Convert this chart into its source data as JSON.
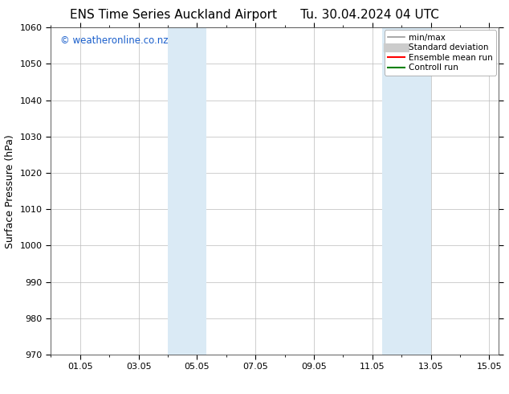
{
  "title_left": "ENS Time Series Auckland Airport",
  "title_right": "Tu. 30.04.2024 04 UTC",
  "ylabel": "Surface Pressure (hPa)",
  "ylim": [
    970,
    1060
  ],
  "yticks": [
    970,
    980,
    990,
    1000,
    1010,
    1020,
    1030,
    1040,
    1050,
    1060
  ],
  "xlim_start": 0.0,
  "xlim_end": 15.33,
  "xtick_positions": [
    1,
    3,
    5,
    7,
    9,
    11,
    13,
    15
  ],
  "xtick_labels": [
    "01.05",
    "03.05",
    "05.05",
    "07.05",
    "09.05",
    "11.05",
    "13.05",
    "15.05"
  ],
  "xminor_positions": [
    0,
    1,
    2,
    3,
    4,
    5,
    6,
    7,
    8,
    9,
    10,
    11,
    12,
    13,
    14,
    15
  ],
  "shaded_regions": [
    {
      "x_start": 4.0,
      "x_end": 5.33,
      "color": "#daeaf5"
    },
    {
      "x_start": 11.33,
      "x_end": 13.0,
      "color": "#daeaf5"
    }
  ],
  "watermark_text": "© weatheronline.co.nz",
  "watermark_color": "#1a5fcc",
  "watermark_fontsize": 8.5,
  "legend_items": [
    {
      "label": "min/max",
      "color": "#999999",
      "lw": 1.2
    },
    {
      "label": "Standard deviation",
      "color": "#cccccc",
      "lw": 8
    },
    {
      "label": "Ensemble mean run",
      "color": "#ff0000",
      "lw": 1.5
    },
    {
      "label": "Controll run",
      "color": "#008000",
      "lw": 1.5
    }
  ],
  "background_color": "#ffffff",
  "grid_color": "#bbbbbb",
  "title_fontsize": 11,
  "ylabel_fontsize": 9,
  "tick_fontsize": 8,
  "legend_fontsize": 7.5
}
